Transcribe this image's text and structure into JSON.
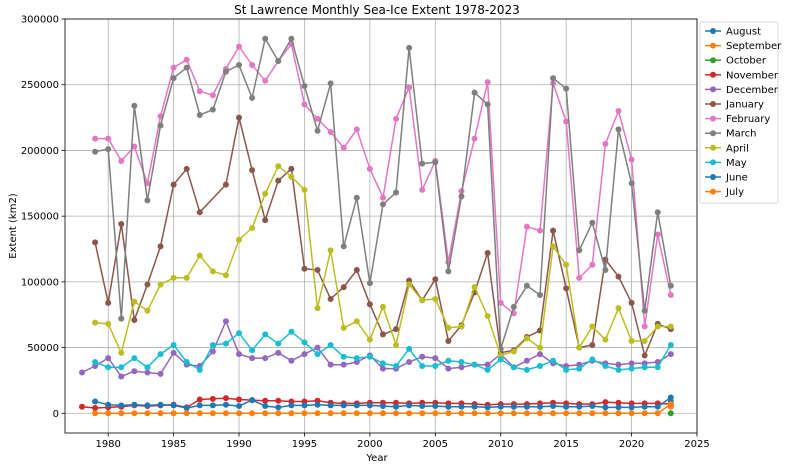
{
  "chart_data": {
    "type": "line",
    "title": "St Lawrence Monthly Sea-Ice Extent 1978-2023",
    "xlabel": "Year",
    "ylabel": "Extent (km2)",
    "xlim": [
      1976.7,
      2025
    ],
    "ylim": [
      -15000,
      300000
    ],
    "xticks": [
      1980,
      1985,
      1990,
      1995,
      2000,
      2005,
      2010,
      2015,
      2020,
      2025
    ],
    "yticks": [
      0,
      50000,
      100000,
      150000,
      200000,
      250000,
      300000
    ],
    "grid": true,
    "legend_position": "outside-right",
    "series": [
      {
        "name": "August",
        "color": "#1f77b4",
        "x": [
          2023
        ],
        "y": [
          9000
        ]
      },
      {
        "name": "September",
        "color": "#ff7f0e",
        "x": [
          2023
        ],
        "y": [
          5000
        ]
      },
      {
        "name": "October",
        "color": "#2ca02c",
        "x": [
          2023
        ],
        "y": [
          0
        ]
      },
      {
        "name": "November",
        "color": "#d62728",
        "x": [
          1978,
          1979,
          1980,
          1981,
          1982,
          1983,
          1984,
          1985,
          1986,
          1987,
          1988,
          1989,
          1990,
          1991,
          1992,
          1993,
          1994,
          1995,
          1996,
          1997,
          1998,
          1999,
          2000,
          2001,
          2002,
          2003,
          2004,
          2005,
          2006,
          2007,
          2008,
          2009,
          2010,
          2011,
          2012,
          2013,
          2014,
          2015,
          2016,
          2017,
          2018,
          2019,
          2020,
          2021,
          2022,
          2023
        ],
        "y": [
          5000,
          4000,
          4500,
          5000,
          6000,
          5500,
          6000,
          6500,
          4500,
          10500,
          11000,
          11500,
          10500,
          10000,
          9500,
          9500,
          9000,
          9000,
          9500,
          8000,
          7500,
          7500,
          8000,
          8000,
          8000,
          7500,
          8000,
          8000,
          7500,
          7500,
          7000,
          6500,
          7000,
          7000,
          7000,
          7500,
          8000,
          7500,
          7000,
          7000,
          8500,
          8000,
          7500,
          7500,
          7500,
          7000
        ]
      },
      {
        "name": "December",
        "color": "#9467bd",
        "x": [
          1978,
          1979,
          1980,
          1981,
          1982,
          1983,
          1984,
          1985,
          1986,
          1987,
          1988,
          1989,
          1990,
          1991,
          1992,
          1993,
          1994,
          1995,
          1996,
          1997,
          1998,
          1999,
          2000,
          2001,
          2002,
          2003,
          2004,
          2005,
          2006,
          2007,
          2008,
          2009,
          2010,
          2011,
          2012,
          2013,
          2014,
          2015,
          2016,
          2017,
          2018,
          2019,
          2020,
          2021,
          2022,
          2023
        ],
        "y": [
          31000,
          36000,
          42000,
          28000,
          32000,
          31000,
          30000,
          46000,
          37000,
          36000,
          47000,
          70000,
          45000,
          42000,
          42000,
          46000,
          40000,
          45000,
          50000,
          37000,
          37000,
          39000,
          44000,
          34000,
          34000,
          39000,
          43000,
          42000,
          34000,
          35000,
          37000,
          37000,
          45000,
          35000,
          40000,
          45000,
          38000,
          36000,
          37000,
          40000,
          38000,
          37000,
          38000,
          38000,
          39000,
          45000
        ]
      },
      {
        "name": "January",
        "color": "#8c564b",
        "x": [
          1979,
          1980,
          1981,
          1982,
          1983,
          1984,
          1985,
          1986,
          1987,
          1989,
          1990,
          1991,
          1992,
          1993,
          1994,
          1995,
          1996,
          1997,
          1998,
          1999,
          2000,
          2001,
          2002,
          2003,
          2004,
          2005,
          2006,
          2007,
          2008,
          2009,
          2010,
          2011,
          2012,
          2013,
          2014,
          2015,
          2016,
          2017,
          2018,
          2019,
          2020,
          2021,
          2022,
          2023
        ],
        "y": [
          130000,
          84000,
          144000,
          71000,
          98000,
          127000,
          174000,
          186000,
          153000,
          174000,
          225000,
          185000,
          147000,
          177000,
          186000,
          110000,
          109000,
          87000,
          96000,
          109000,
          83000,
          60000,
          64000,
          101000,
          86000,
          102000,
          55000,
          67000,
          92000,
          122000,
          46000,
          48000,
          58000,
          63000,
          139000,
          95000,
          50000,
          52000,
          117000,
          104000,
          84000,
          44000,
          68000,
          64000
        ]
      },
      {
        "name": "February",
        "color": "#e377c2",
        "x": [
          1979,
          1980,
          1981,
          1982,
          1983,
          1984,
          1985,
          1986,
          1987,
          1988,
          1989,
          1990,
          1991,
          1992,
          1993,
          1994,
          1995,
          1996,
          1997,
          1998,
          1999,
          2000,
          2001,
          2002,
          2003,
          2004,
          2005,
          2006,
          2007,
          2008,
          2009,
          2010,
          2011,
          2012,
          2013,
          2014,
          2015,
          2016,
          2017,
          2018,
          2019,
          2020,
          2021,
          2022,
          2023
        ],
        "y": [
          209000,
          209000,
          192000,
          203000,
          175000,
          226000,
          263000,
          269000,
          245000,
          242000,
          262000,
          279000,
          265000,
          253000,
          268000,
          281000,
          235000,
          224000,
          214000,
          202000,
          216000,
          186000,
          164000,
          224000,
          248000,
          170000,
          192000,
          115000,
          169000,
          209000,
          252000,
          84000,
          76000,
          142000,
          139000,
          251000,
          222000,
          103000,
          113000,
          205000,
          230000,
          193000,
          66000,
          136000,
          90000
        ]
      },
      {
        "name": "March",
        "color": "#7f7f7f",
        "x": [
          1979,
          1980,
          1981,
          1982,
          1983,
          1984,
          1985,
          1986,
          1987,
          1988,
          1989,
          1990,
          1991,
          1992,
          1993,
          1994,
          1995,
          1996,
          1997,
          1998,
          1999,
          2000,
          2001,
          2002,
          2003,
          2004,
          2005,
          2006,
          2007,
          2008,
          2009,
          2010,
          2011,
          2012,
          2013,
          2014,
          2015,
          2016,
          2017,
          2018,
          2019,
          2020,
          2021,
          2022,
          2023
        ],
        "y": [
          199000,
          201000,
          72000,
          234000,
          162000,
          219000,
          255000,
          263000,
          227000,
          231000,
          260000,
          265000,
          240000,
          285000,
          268000,
          285000,
          249000,
          215000,
          251000,
          127000,
          164000,
          99000,
          159000,
          168000,
          278000,
          190000,
          191000,
          108000,
          165000,
          244000,
          235000,
          49000,
          81000,
          97000,
          90000,
          255000,
          247000,
          124000,
          145000,
          109000,
          216000,
          175000,
          78000,
          153000,
          97000
        ]
      },
      {
        "name": "April",
        "color": "#bcbd22",
        "x": [
          1979,
          1980,
          1981,
          1982,
          1983,
          1984,
          1985,
          1986,
          1987,
          1988,
          1989,
          1990,
          1991,
          1992,
          1993,
          1994,
          1995,
          1996,
          1997,
          1998,
          1999,
          2000,
          2001,
          2002,
          2003,
          2004,
          2005,
          2006,
          2007,
          2008,
          2009,
          2010,
          2011,
          2012,
          2013,
          2014,
          2015,
          2016,
          2017,
          2018,
          2019,
          2020,
          2021,
          2022,
          2023
        ],
        "y": [
          69000,
          68000,
          46000,
          85000,
          78000,
          98000,
          103000,
          103000,
          120000,
          108000,
          105000,
          132000,
          141000,
          167000,
          188000,
          180000,
          170000,
          80000,
          124000,
          65000,
          70000,
          56000,
          81000,
          52000,
          98000,
          86000,
          87000,
          65000,
          66000,
          96000,
          74000,
          44000,
          47000,
          57000,
          50000,
          127000,
          113000,
          50000,
          66000,
          56000,
          80000,
          55000,
          55000,
          66000,
          66000
        ]
      },
      {
        "name": "May",
        "color": "#17becf",
        "x": [
          1979,
          1980,
          1981,
          1982,
          1983,
          1984,
          1985,
          1986,
          1987,
          1988,
          1989,
          1990,
          1991,
          1992,
          1993,
          1994,
          1995,
          1996,
          1997,
          1998,
          1999,
          2000,
          2001,
          2002,
          2003,
          2004,
          2005,
          2006,
          2007,
          2008,
          2009,
          2010,
          2011,
          2012,
          2013,
          2014,
          2015,
          2016,
          2017,
          2018,
          2019,
          2020,
          2021,
          2022,
          2023
        ],
        "y": [
          39000,
          35000,
          35000,
          42000,
          35000,
          45000,
          52000,
          39000,
          33000,
          52000,
          53000,
          61000,
          48000,
          60000,
          53000,
          62000,
          54000,
          45000,
          52000,
          43000,
          42000,
          43000,
          38000,
          36000,
          49000,
          36000,
          36000,
          40000,
          39000,
          37000,
          33000,
          41000,
          35000,
          33000,
          36000,
          40000,
          33000,
          34000,
          41000,
          36000,
          33000,
          34000,
          35000,
          35000,
          52000
        ]
      },
      {
        "name": "June",
        "color": "#1f77b4",
        "x": [
          1979,
          1980,
          1981,
          1982,
          1983,
          1984,
          1985,
          1986,
          1987,
          1988,
          1989,
          1990,
          1991,
          1992,
          1993,
          1994,
          1995,
          1996,
          1997,
          1998,
          1999,
          2000,
          2001,
          2002,
          2003,
          2004,
          2005,
          2006,
          2007,
          2008,
          2009,
          2010,
          2011,
          2012,
          2013,
          2014,
          2015,
          2016,
          2017,
          2018,
          2019,
          2020,
          2021,
          2022,
          2023
        ],
        "y": [
          9000,
          6500,
          6000,
          6500,
          6000,
          6500,
          6000,
          4000,
          6000,
          6000,
          6500,
          5500,
          10000,
          5500,
          4500,
          6000,
          6000,
          6500,
          6000,
          6000,
          6000,
          6000,
          5500,
          5000,
          6000,
          5500,
          5500,
          5000,
          5000,
          5000,
          4500,
          5000,
          5000,
          5000,
          5000,
          5500,
          5000,
          5000,
          5500,
          4500,
          4500,
          4500,
          5000,
          5000,
          12000
        ]
      },
      {
        "name": "July",
        "color": "#ff7f0e",
        "x": [
          1979,
          1980,
          1981,
          1982,
          1983,
          1984,
          1985,
          1986,
          1987,
          1988,
          1989,
          1990,
          1991,
          1992,
          1993,
          1994,
          1995,
          1996,
          1997,
          1998,
          1999,
          2000,
          2001,
          2002,
          2003,
          2004,
          2005,
          2006,
          2007,
          2008,
          2009,
          2010,
          2011,
          2012,
          2013,
          2014,
          2015,
          2016,
          2017,
          2018,
          2019,
          2020,
          2021,
          2022,
          2023
        ],
        "y": [
          0,
          0,
          0,
          0,
          0,
          0,
          0,
          0,
          0,
          0,
          0,
          0,
          0,
          0,
          0,
          0,
          0,
          0,
          0,
          0,
          0,
          0,
          0,
          0,
          0,
          0,
          0,
          0,
          0,
          0,
          0,
          0,
          0,
          0,
          0,
          0,
          0,
          0,
          0,
          0,
          0,
          0,
          0,
          0,
          7000
        ]
      }
    ]
  }
}
